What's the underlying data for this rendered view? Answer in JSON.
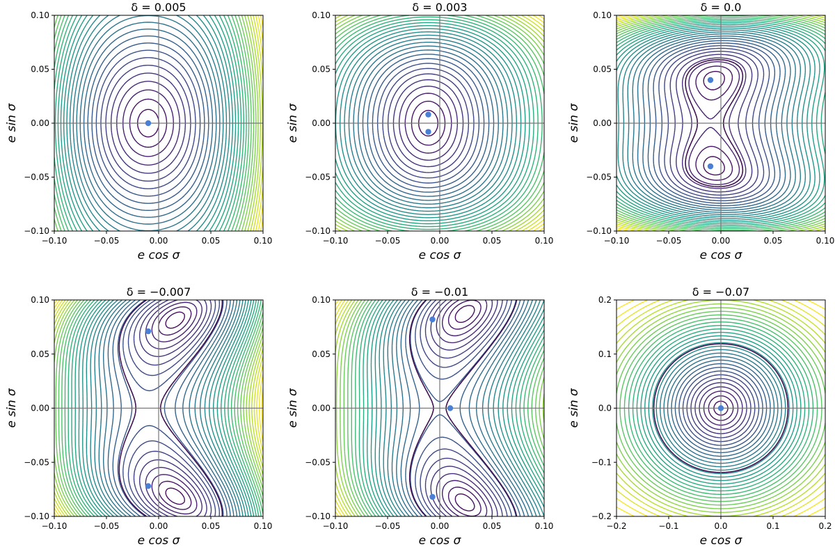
{
  "chart_data": [
    {
      "type": "contour",
      "title": "δ = 0.005",
      "xlabel": "e cos σ",
      "ylabel": "e sin σ",
      "xlim": [
        -0.1,
        0.1
      ],
      "ylim": [
        -0.1,
        0.1
      ],
      "xticks": [
        "−0.10",
        "−0.05",
        "0.00",
        "0.05",
        "0.10"
      ],
      "yticks": [
        "−0.10",
        "−0.05",
        "0.00",
        "0.05",
        "0.10"
      ],
      "fixed_points": [
        [
          -0.01,
          0.0
        ]
      ],
      "grid": false
    },
    {
      "type": "contour",
      "title": "δ = 0.003",
      "xlabel": "e cos σ",
      "ylabel": "e sin σ",
      "xlim": [
        -0.1,
        0.1
      ],
      "ylim": [
        -0.1,
        0.1
      ],
      "xticks": [
        "−0.10",
        "−0.05",
        "0.00",
        "0.05",
        "0.10"
      ],
      "yticks": [
        "−0.10",
        "−0.05",
        "0.00",
        "0.05",
        "0.10"
      ],
      "fixed_points": [
        [
          -0.011,
          0.008
        ],
        [
          -0.011,
          -0.008
        ]
      ],
      "grid": false
    },
    {
      "type": "contour",
      "title": "δ = 0.0",
      "xlabel": "e cos σ",
      "ylabel": "e sin σ",
      "xlim": [
        -0.1,
        0.1
      ],
      "ylim": [
        -0.1,
        0.1
      ],
      "xticks": [
        "−0.10",
        "−0.05",
        "0.00",
        "0.05",
        "0.10"
      ],
      "yticks": [
        "−0.10",
        "−0.05",
        "0.00",
        "0.05",
        "0.10"
      ],
      "fixed_points": [
        [
          -0.01,
          0.04
        ],
        [
          -0.01,
          -0.04
        ]
      ],
      "grid": false
    },
    {
      "type": "contour",
      "title": "δ = −0.007",
      "xlabel": "e cos σ",
      "ylabel": "e sin σ",
      "xlim": [
        -0.1,
        0.1
      ],
      "ylim": [
        -0.1,
        0.1
      ],
      "xticks": [
        "−0.10",
        "−0.05",
        "0.00",
        "0.05",
        "0.10"
      ],
      "yticks": [
        "−0.10",
        "−0.05",
        "0.00",
        "0.05",
        "0.10"
      ],
      "fixed_points": [
        [
          -0.01,
          0.071
        ],
        [
          -0.01,
          -0.072
        ]
      ],
      "grid": false
    },
    {
      "type": "contour",
      "title": "δ = −0.01",
      "xlabel": "e cos σ",
      "ylabel": "e sin σ",
      "xlim": [
        -0.1,
        0.1
      ],
      "ylim": [
        -0.1,
        0.1
      ],
      "xticks": [
        "−0.10",
        "−0.05",
        "0.00",
        "0.05",
        "0.10"
      ],
      "yticks": [
        "−0.10",
        "−0.05",
        "0.00",
        "0.05",
        "0.10"
      ],
      "fixed_points": [
        [
          -0.007,
          0.082
        ],
        [
          0.01,
          0.0
        ],
        [
          -0.007,
          -0.082
        ]
      ],
      "grid": false
    },
    {
      "type": "contour",
      "title": "δ = −0.07",
      "xlabel": "e cos σ",
      "ylabel": "e sin σ",
      "xlim": [
        -0.25,
        0.25
      ],
      "ylim": [
        -0.25,
        0.25
      ],
      "xticks": [
        "−0.2",
        "−0.1",
        "0.0",
        "0.1",
        "0.2"
      ],
      "yticks": [
        "−0.2",
        "−0.1",
        "0.0",
        "0.1",
        "0.2"
      ],
      "fixed_points": [
        [
          0.0,
          0.0
        ]
      ],
      "grid": false
    }
  ]
}
